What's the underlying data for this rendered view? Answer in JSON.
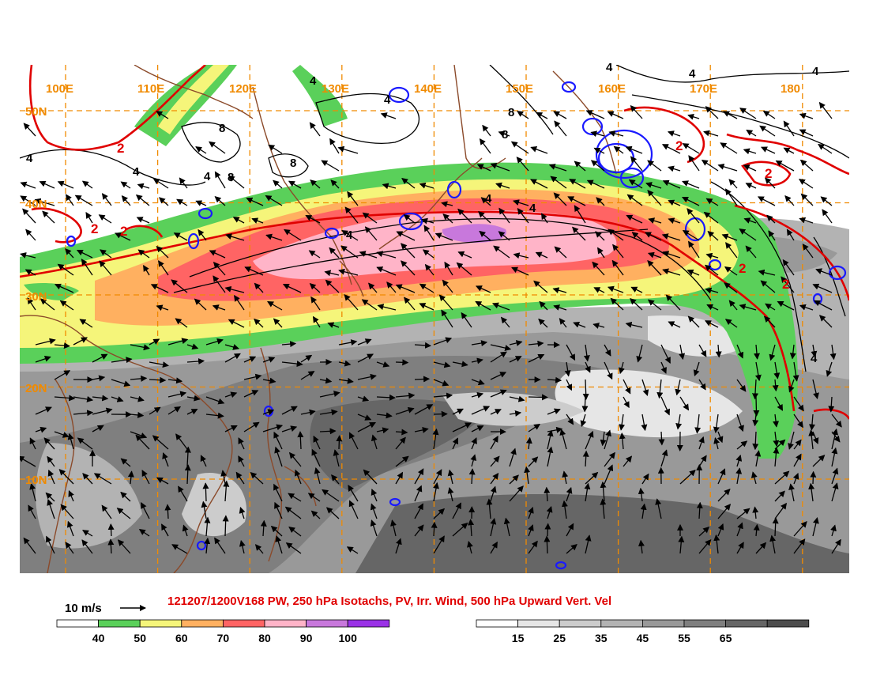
{
  "map": {
    "title": "121207/1200V168 PW, 250 hPa Isotachs, PV, Irr. Wind, 500 hPa Upward Vert. Vel",
    "reference_vector_label": "10 m/s",
    "longitude_labels": [
      "100E",
      "110E",
      "120E",
      "130E",
      "140E",
      "150E",
      "160E",
      "170E",
      "180"
    ],
    "latitude_labels": [
      "50N",
      "40N",
      "30N",
      "20N",
      "10N"
    ],
    "longitudes": [
      100,
      110,
      120,
      130,
      140,
      150,
      160,
      170,
      180
    ],
    "latitudes": [
      50,
      40,
      30,
      20,
      10
    ],
    "contour_labels_black": [
      "4",
      "4",
      "4",
      "4",
      "8",
      "8",
      "8",
      "8",
      "8",
      "4",
      "4",
      "4",
      "4",
      "4",
      "4",
      "4",
      "4"
    ],
    "contour_labels_red": [
      "2",
      "2",
      "2",
      "2",
      "2",
      "2",
      "2"
    ],
    "colors": {
      "grid_lines": "#f08a00",
      "coastline": "#8b4a2a",
      "pv_contour": "#e00000",
      "isotach_contour": "#000000",
      "vertical_velocity": "#1a1aff",
      "title": "#e00000"
    }
  },
  "legend_isotachs": {
    "ticks": [
      "40",
      "50",
      "60",
      "70",
      "80",
      "90",
      "100"
    ],
    "colors": [
      "#ffffff",
      "#5ad05a",
      "#f5f57a",
      "#ffb060",
      "#ff6464",
      "#ffb4c8",
      "#c878dc",
      "#9a32e6"
    ]
  },
  "legend_pw": {
    "ticks": [
      "15",
      "25",
      "35",
      "45",
      "55",
      "65"
    ],
    "colors": [
      "#ffffff",
      "#e6e6e6",
      "#cccccc",
      "#b3b3b3",
      "#999999",
      "#7f7f7f",
      "#666666",
      "#4d4d4d"
    ]
  }
}
